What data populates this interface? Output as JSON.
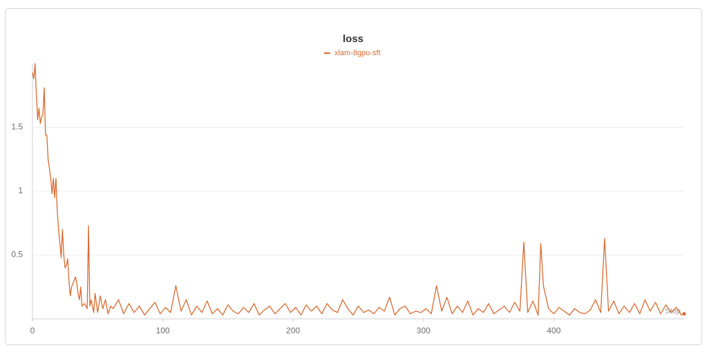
{
  "chart_data": {
    "type": "line",
    "title": "loss",
    "xlabel": "Step",
    "x": [
      0,
      1,
      2,
      3,
      4,
      5,
      6,
      7,
      8,
      9,
      10,
      11,
      12,
      13,
      14,
      15,
      16,
      17,
      18,
      19,
      20,
      21,
      22,
      23,
      24,
      25,
      26,
      27,
      28,
      29,
      30,
      32,
      33,
      34,
      35,
      36,
      37,
      38,
      40,
      42,
      43,
      44,
      45,
      47,
      48,
      50,
      52,
      54,
      56,
      58,
      60,
      62,
      66,
      70,
      74,
      78,
      82,
      86,
      90,
      94,
      98,
      102,
      106,
      110,
      114,
      118,
      122,
      126,
      130,
      134,
      138,
      142,
      146,
      150,
      154,
      158,
      162,
      166,
      170,
      174,
      178,
      182,
      186,
      190,
      194,
      198,
      202,
      206,
      210,
      214,
      218,
      222,
      226,
      230,
      234,
      238,
      242,
      246,
      250,
      254,
      258,
      262,
      266,
      270,
      274,
      278,
      282,
      286,
      290,
      294,
      298,
      302,
      306,
      310,
      314,
      318,
      322,
      326,
      330,
      334,
      338,
      342,
      346,
      350,
      354,
      358,
      362,
      366,
      370,
      374,
      377,
      380,
      384,
      388,
      390,
      392,
      396,
      400,
      404,
      408,
      412,
      416,
      420,
      424,
      428,
      432,
      436,
      439,
      442,
      446,
      450,
      454,
      458,
      462,
      466,
      470,
      474,
      478,
      482,
      486,
      490,
      494,
      498,
      500
    ],
    "series": [
      {
        "name": "xlam-8gpu-sft",
        "color": "#d9692e",
        "values": [
          1.93,
          1.88,
          2.0,
          1.75,
          1.56,
          1.65,
          1.53,
          1.58,
          1.6,
          1.81,
          1.44,
          1.44,
          1.25,
          1.18,
          1.1,
          0.98,
          1.1,
          0.95,
          1.1,
          0.85,
          0.7,
          0.6,
          0.48,
          0.7,
          0.5,
          0.4,
          0.42,
          0.47,
          0.3,
          0.18,
          0.25,
          0.3,
          0.33,
          0.28,
          0.2,
          0.15,
          0.25,
          0.1,
          0.12,
          0.08,
          0.73,
          0.1,
          0.15,
          0.05,
          0.2,
          0.05,
          0.18,
          0.08,
          0.15,
          0.04,
          0.1,
          0.08,
          0.15,
          0.04,
          0.12,
          0.05,
          0.1,
          0.03,
          0.08,
          0.13,
          0.04,
          0.09,
          0.05,
          0.26,
          0.06,
          0.15,
          0.03,
          0.1,
          0.05,
          0.14,
          0.04,
          0.08,
          0.03,
          0.11,
          0.06,
          0.04,
          0.09,
          0.05,
          0.12,
          0.03,
          0.07,
          0.1,
          0.04,
          0.08,
          0.12,
          0.05,
          0.09,
          0.03,
          0.11,
          0.06,
          0.1,
          0.04,
          0.12,
          0.07,
          0.05,
          0.15,
          0.08,
          0.03,
          0.1,
          0.05,
          0.07,
          0.04,
          0.09,
          0.06,
          0.17,
          0.03,
          0.08,
          0.1,
          0.04,
          0.06,
          0.05,
          0.08,
          0.04,
          0.26,
          0.06,
          0.17,
          0.04,
          0.1,
          0.05,
          0.14,
          0.03,
          0.08,
          0.05,
          0.12,
          0.04,
          0.07,
          0.1,
          0.05,
          0.13,
          0.06,
          0.6,
          0.05,
          0.14,
          0.03,
          0.59,
          0.26,
          0.08,
          0.04,
          0.09,
          0.06,
          0.03,
          0.08,
          0.05,
          0.04,
          0.07,
          0.15,
          0.05,
          0.63,
          0.06,
          0.14,
          0.04,
          0.1,
          0.05,
          0.12,
          0.04,
          0.15,
          0.06,
          0.13,
          0.04,
          0.11,
          0.05,
          0.09,
          0.03,
          0.04
        ]
      }
    ],
    "xlim": [
      0,
      500
    ],
    "xticks": [
      0,
      100,
      200,
      300,
      400
    ],
    "ylim": [
      0,
      2.0
    ],
    "yticks": [
      0.5,
      1,
      1.5
    ],
    "grid": true
  }
}
